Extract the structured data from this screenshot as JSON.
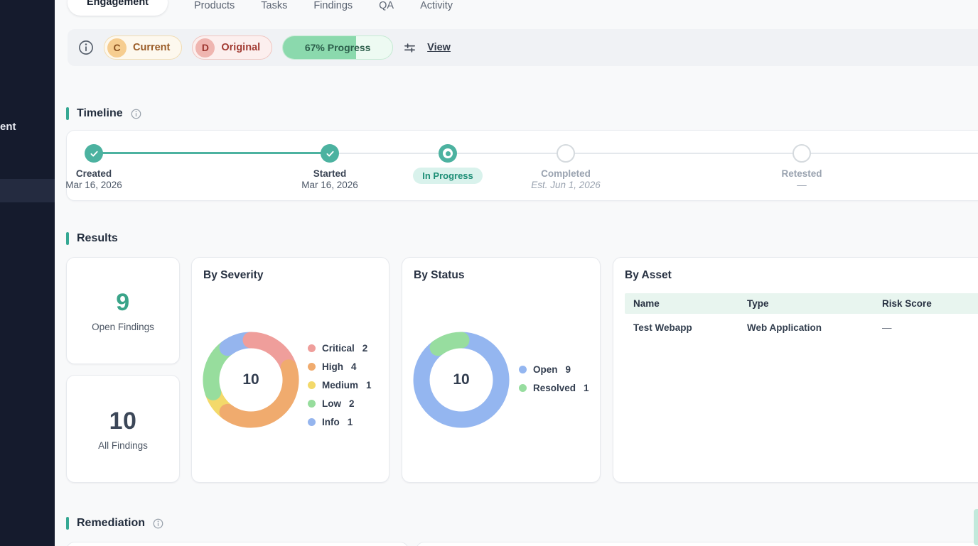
{
  "sidebar": {
    "partial_item_text": "ent"
  },
  "tabs": {
    "items": [
      {
        "label": "Engagement",
        "active": true
      },
      {
        "label": "Products",
        "active": false
      },
      {
        "label": "Tasks",
        "active": false
      },
      {
        "label": "Findings",
        "active": false
      },
      {
        "label": "QA",
        "active": false
      },
      {
        "label": "Activity",
        "active": false
      }
    ]
  },
  "toolbar": {
    "badge_current": {
      "letter": "C",
      "label": "Current"
    },
    "badge_original": {
      "letter": "D",
      "label": "Original"
    },
    "progress": {
      "label": "67% Progress",
      "percent": 67
    },
    "view_label": "View"
  },
  "sections": {
    "timeline_title": "Timeline",
    "results_title": "Results",
    "remediation_title": "Remediation"
  },
  "timeline_steps": [
    {
      "label": "Created",
      "date": "Mar 16, 2026",
      "state": "done"
    },
    {
      "label": "Started",
      "date": "Mar 16, 2026",
      "state": "done"
    },
    {
      "label": "In Progress",
      "date": "",
      "state": "current"
    },
    {
      "label": "Completed",
      "date": "Est. Jun 1, 2026",
      "state": "pending"
    },
    {
      "label": "Retested",
      "date": "—",
      "state": "pending"
    }
  ],
  "stats": [
    {
      "value": "9",
      "label": "Open Findings"
    },
    {
      "value": "10",
      "label": "All Findings"
    }
  ],
  "asset_table": {
    "title": "By Asset",
    "columns": [
      "Name",
      "Type",
      "Risk Score"
    ],
    "rows": [
      [
        "Test Webapp",
        "Web Application",
        "—"
      ]
    ]
  },
  "chart_data": [
    {
      "type": "donut",
      "title": "By Severity",
      "center_label": "10",
      "categories": [
        "Critical",
        "High",
        "Medium",
        "Low",
        "Info"
      ],
      "values": [
        2,
        4,
        1,
        2,
        1
      ],
      "colors": [
        "#ef9e9b",
        "#f0ab6e",
        "#f3d96a",
        "#97dd9d",
        "#95b5ee"
      ],
      "legend_position": "right",
      "draw_order": [
        2,
        3,
        4,
        0,
        1
      ]
    },
    {
      "type": "donut",
      "title": "By Status",
      "center_label": "10",
      "categories": [
        "Open",
        "Resolved"
      ],
      "values": [
        9,
        1
      ],
      "colors": [
        "#94b6f0",
        "#97dd9f"
      ],
      "legend_position": "right",
      "draw_order": [
        0,
        1
      ]
    }
  ],
  "accent_colors": {
    "teal": "#4cb2a0",
    "heading_bar": "#35a893",
    "progress_fill": "#8bd9ad",
    "table_header_bg": "#e8f5ef"
  }
}
